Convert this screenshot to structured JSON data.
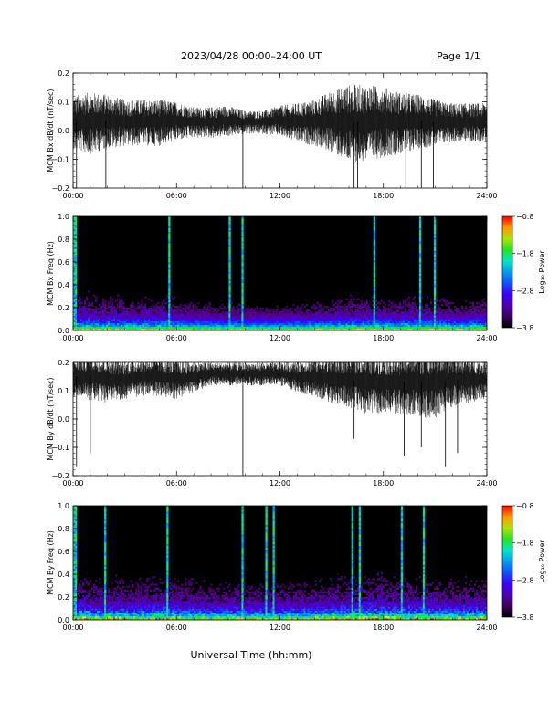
{
  "header": {
    "title": "2023/04/28  00:00–24:00 UT",
    "page": "Page 1/1"
  },
  "footer": {
    "xlabel": "Universal Time (hh:mm)"
  },
  "chart_data": [
    {
      "type": "line",
      "ylabel": "MCM Bx dB/dt (nT/sec)",
      "ylim": [
        -0.2,
        0.2
      ],
      "yticks": [
        -0.2,
        -0.1,
        0.0,
        0.1,
        0.2
      ],
      "ytick_labels": [
        "−0.2",
        "−0.1",
        "0.0",
        "0.1",
        "0.2"
      ],
      "xlim": [
        0,
        24
      ],
      "xticks": [
        0,
        6,
        12,
        18,
        24
      ],
      "xtick_labels": [
        "00:00",
        "06:00",
        "12:00",
        "18:00",
        "24:00"
      ],
      "color": "#000000",
      "series": [
        {
          "x": [
            0,
            1,
            2,
            3,
            4,
            5,
            6,
            7,
            8,
            9,
            10,
            11,
            12,
            13,
            14,
            15,
            16,
            17,
            18,
            19,
            20,
            21,
            22,
            23,
            24
          ],
          "mean": [
            0.03,
            0.03,
            0.035,
            0.03,
            0.03,
            0.03,
            0.035,
            0.03,
            0.03,
            0.035,
            0.03,
            0.03,
            0.035,
            0.03,
            0.03,
            0.035,
            0.03,
            0.03,
            0.035,
            0.03,
            0.035,
            0.03,
            0.03,
            0.03,
            0.03
          ],
          "spread": [
            0.07,
            0.08,
            0.07,
            0.06,
            0.06,
            0.06,
            0.05,
            0.04,
            0.04,
            0.04,
            0.03,
            0.03,
            0.04,
            0.05,
            0.06,
            0.08,
            0.1,
            0.1,
            0.09,
            0.08,
            0.07,
            0.06,
            0.05,
            0.05,
            0.05
          ]
        }
      ],
      "spikes": [
        {
          "x": 0.2,
          "y": -0.2
        },
        {
          "x": 1.9,
          "y": -0.2
        },
        {
          "x": 9.85,
          "y": -0.2
        },
        {
          "x": 16.3,
          "y": -0.2
        },
        {
          "x": 16.5,
          "y": -0.2
        },
        {
          "x": 19.3,
          "y": -0.2
        },
        {
          "x": 20.2,
          "y": -0.2
        },
        {
          "x": 20.9,
          "y": -0.2
        }
      ]
    },
    {
      "type": "heatmap",
      "ylabel": "MCM Bx Freq (Hz)",
      "ylim": [
        0.0,
        1.0
      ],
      "yticks": [
        0.0,
        0.2,
        0.4,
        0.6,
        0.8,
        1.0
      ],
      "ytick_labels": [
        "0.0",
        "0.2",
        "0.4",
        "0.6",
        "0.8",
        "1.0"
      ],
      "xlim": [
        0,
        24
      ],
      "xticks": [
        0,
        6,
        12,
        18,
        24
      ],
      "xtick_labels": [
        "00:00",
        "06:00",
        "12:00",
        "18:00",
        "24:00"
      ],
      "colorbar": {
        "label": "Log₁₀ Power",
        "range": [
          -3.8,
          -0.8
        ],
        "ticks": [
          -0.8,
          -1.8,
          -2.8,
          -3.8
        ],
        "tick_labels": [
          "−0.8",
          "−1.8",
          "−2.8",
          "−3.8"
        ]
      },
      "activity_by_hour": [
        0.6,
        0.5,
        0.55,
        0.45,
        0.5,
        0.55,
        0.4,
        0.35,
        0.3,
        0.4,
        0.3,
        0.25,
        0.3,
        0.35,
        0.4,
        0.45,
        0.5,
        0.5,
        0.45,
        0.5,
        0.5,
        0.45,
        0.4,
        0.45
      ],
      "bursts": [
        0.1,
        5.6,
        9.1,
        9.8,
        17.5,
        20.1,
        21.0
      ]
    },
    {
      "type": "line",
      "ylabel": "MCM By dB/dt (nT/sec)",
      "ylim": [
        -0.2,
        0.2
      ],
      "yticks": [
        -0.2,
        -0.1,
        0.0,
        0.1,
        0.2
      ],
      "ytick_labels": [
        "−0.2",
        "−0.1",
        "0.0",
        "0.1",
        "0.2"
      ],
      "xlim": [
        0,
        24
      ],
      "xticks": [
        0,
        6,
        12,
        18,
        24
      ],
      "xtick_labels": [
        "00:00",
        "06:00",
        "12:00",
        "18:00",
        "24:00"
      ],
      "color": "#000000",
      "series": [
        {
          "x": [
            0,
            1,
            2,
            3,
            4,
            5,
            6,
            7,
            8,
            9,
            10,
            11,
            12,
            13,
            14,
            15,
            16,
            17,
            18,
            19,
            20,
            21,
            22,
            23,
            24
          ],
          "mean": [
            0.15,
            0.15,
            0.14,
            0.14,
            0.15,
            0.15,
            0.14,
            0.15,
            0.16,
            0.16,
            0.16,
            0.16,
            0.16,
            0.15,
            0.15,
            0.14,
            0.14,
            0.13,
            0.13,
            0.13,
            0.13,
            0.13,
            0.14,
            0.14,
            0.14
          ],
          "spread": [
            0.05,
            0.06,
            0.06,
            0.05,
            0.05,
            0.05,
            0.05,
            0.04,
            0.03,
            0.03,
            0.03,
            0.03,
            0.03,
            0.04,
            0.05,
            0.06,
            0.07,
            0.08,
            0.08,
            0.08,
            0.09,
            0.09,
            0.07,
            0.06,
            0.05
          ]
        }
      ],
      "spikes": [
        {
          "x": 0.2,
          "y": -0.17
        },
        {
          "x": 1.0,
          "y": -0.12
        },
        {
          "x": 9.85,
          "y": -0.2
        },
        {
          "x": 16.3,
          "y": -0.07
        },
        {
          "x": 19.2,
          "y": -0.13
        },
        {
          "x": 20.2,
          "y": -0.1
        },
        {
          "x": 21.6,
          "y": -0.17
        },
        {
          "x": 22.3,
          "y": -0.12
        }
      ]
    },
    {
      "type": "heatmap",
      "ylabel": "MCM By Freq (Hz)",
      "ylim": [
        0.0,
        1.0
      ],
      "yticks": [
        0.0,
        0.2,
        0.4,
        0.6,
        0.8,
        1.0
      ],
      "ytick_labels": [
        "0.0",
        "0.2",
        "0.4",
        "0.6",
        "0.8",
        "1.0"
      ],
      "xlim": [
        0,
        24
      ],
      "xticks": [
        0,
        6,
        12,
        18,
        24
      ],
      "xtick_labels": [
        "00:00",
        "06:00",
        "12:00",
        "18:00",
        "24:00"
      ],
      "colorbar": {
        "label": "Log₁₀ Power",
        "range": [
          -3.8,
          -0.8
        ],
        "ticks": [
          -0.8,
          -1.8,
          -2.8,
          -3.8
        ],
        "tick_labels": [
          "−0.8",
          "−1.8",
          "−2.8",
          "−3.8"
        ]
      },
      "activity_by_hour": [
        0.75,
        0.7,
        0.7,
        0.65,
        0.7,
        0.7,
        0.65,
        0.6,
        0.55,
        0.6,
        0.55,
        0.55,
        0.6,
        0.6,
        0.65,
        0.7,
        0.75,
        0.8,
        0.75,
        0.7,
        0.7,
        0.65,
        0.65,
        0.7
      ],
      "bursts": [
        0.1,
        1.9,
        5.5,
        9.8,
        11.2,
        11.6,
        16.2,
        16.6,
        19.1,
        20.3
      ]
    }
  ]
}
